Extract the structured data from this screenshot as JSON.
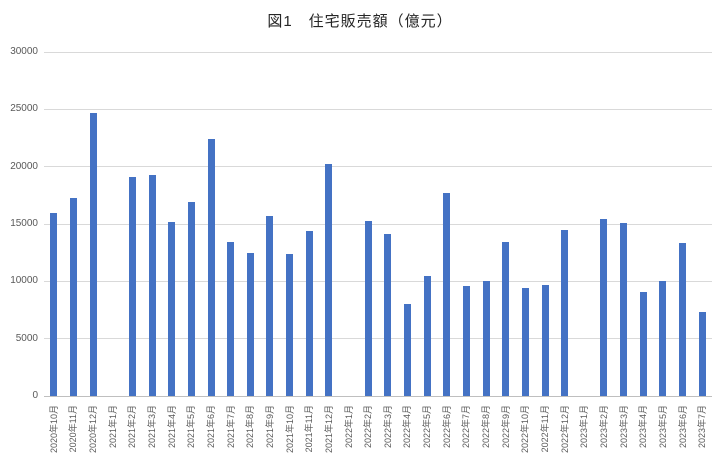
{
  "chart_data": {
    "type": "bar",
    "title": "図1　住宅販売額（億元）",
    "xlabel": "",
    "ylabel": "",
    "ylim": [
      0,
      30000
    ],
    "yticks": [
      0,
      5000,
      10000,
      15000,
      20000,
      25000,
      30000
    ],
    "grid": true,
    "legend": false,
    "categories": [
      "2020年10月",
      "2020年11月",
      "2020年12月",
      "2021年1月",
      "2021年2月",
      "2021年3月",
      "2021年4月",
      "2021年5月",
      "2021年6月",
      "2021年7月",
      "2021年8月",
      "2021年9月",
      "2021年10月",
      "2021年11月",
      "2021年12月",
      "2022年1月",
      "2022年2月",
      "2022年3月",
      "2022年4月",
      "2022年5月",
      "2022年6月",
      "2022年7月",
      "2022年8月",
      "2022年9月",
      "2022年10月",
      "2022年11月",
      "2022年12月",
      "2023年1月",
      "2023年2月",
      "2023年3月",
      "2023年4月",
      "2023年5月",
      "2023年6月",
      "2023年7月"
    ],
    "values": [
      16000,
      17300,
      24700,
      null,
      19100,
      19300,
      15200,
      16900,
      22400,
      13400,
      12500,
      15700,
      12400,
      14400,
      20200,
      null,
      15300,
      14100,
      8000,
      10500,
      17700,
      9600,
      10000,
      13400,
      9400,
      9700,
      14500,
      null,
      15400,
      15100,
      9100,
      10000,
      13300,
      7300
    ],
    "colors": {
      "bar": "#4472C4",
      "gridline": "#D9D9D9",
      "axis_line": "#BFBFBF",
      "tick_label": "#595959",
      "title": "#262626",
      "background": "#FFFFFF"
    }
  }
}
